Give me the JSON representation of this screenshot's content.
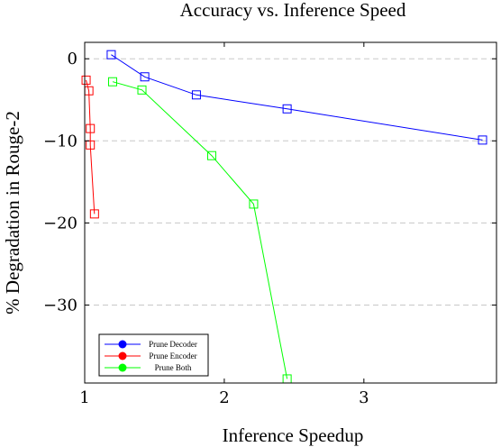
{
  "chart_data": {
    "type": "line",
    "title": "Accuracy vs. Inference Speed",
    "xlabel": "Inference Speedup",
    "ylabel": "% Degradation in Rouge-2",
    "xlim": [
      1.0,
      3.95
    ],
    "ylim": [
      -39.5,
      2.0
    ],
    "xticks": [
      1,
      2,
      3
    ],
    "yticks": [
      0,
      -10,
      -20,
      -30
    ],
    "grid": "horizontal-dashed",
    "legend_position": "bottom-left",
    "series": [
      {
        "name": "Prune Decoder",
        "color": "#0000ff",
        "points": [
          [
            1.19,
            0.5
          ],
          [
            1.43,
            -2.2
          ],
          [
            1.8,
            -4.4
          ],
          [
            2.45,
            -6.1
          ],
          [
            3.85,
            -9.9
          ]
        ]
      },
      {
        "name": "Prune Encoder",
        "color": "#ff0000",
        "points": [
          [
            1.01,
            -2.6
          ],
          [
            1.03,
            -3.9
          ],
          [
            1.04,
            -8.5
          ],
          [
            1.04,
            -10.5
          ],
          [
            1.07,
            -18.9
          ]
        ]
      },
      {
        "name": "Prune Both",
        "color": "#00ff00",
        "points": [
          [
            1.2,
            -2.8
          ],
          [
            1.41,
            -3.8
          ],
          [
            1.91,
            -11.8
          ],
          [
            2.21,
            -17.7
          ],
          [
            2.45,
            -39.0
          ]
        ]
      }
    ]
  }
}
